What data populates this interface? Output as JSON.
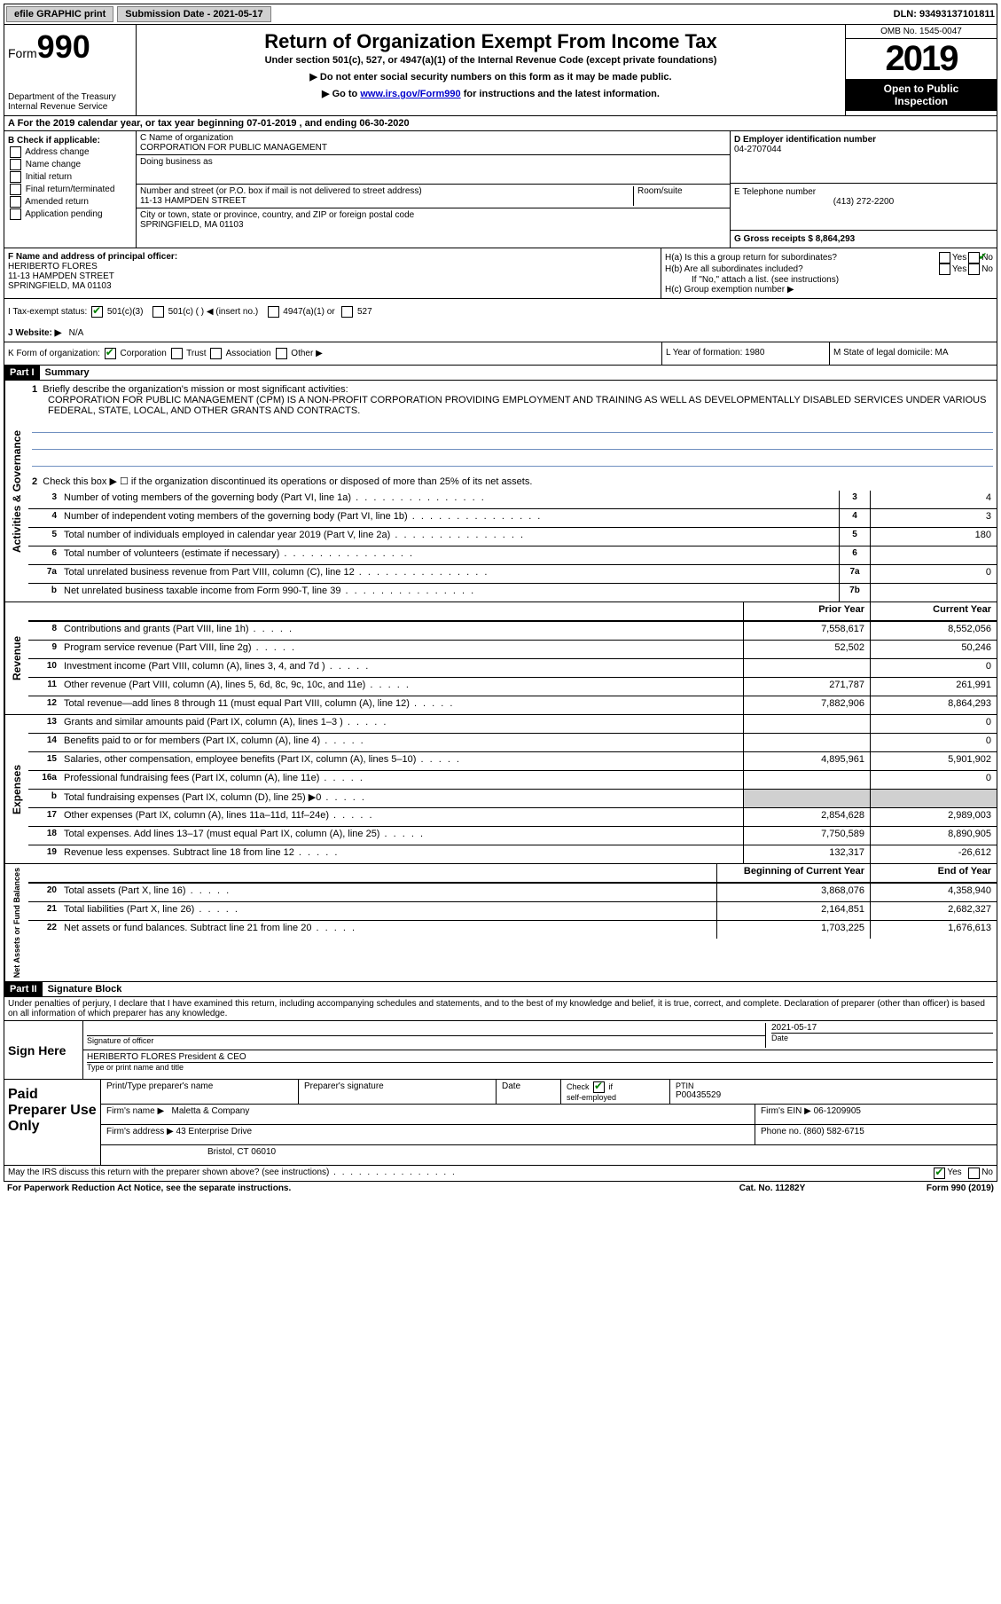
{
  "topbar": {
    "efile": "efile GRAPHIC print",
    "submission_label": "Submission Date - 2021-05-17",
    "dln": "DLN: 93493137101811"
  },
  "header": {
    "form_word": "Form",
    "form_num": "990",
    "dept": "Department of the Treasury",
    "irs": "Internal Revenue Service",
    "title": "Return of Organization Exempt From Income Tax",
    "sub1": "Under section 501(c), 527, or 4947(a)(1) of the Internal Revenue Code (except private foundations)",
    "sub2": "▶ Do not enter social security numbers on this form as it may be made public.",
    "sub3a": "▶ Go to ",
    "sub3_link": "www.irs.gov/Form990",
    "sub3b": " for instructions and the latest information.",
    "omb": "OMB No. 1545-0047",
    "year": "2019",
    "inspect1": "Open to Public",
    "inspect2": "Inspection"
  },
  "rowA": "A For the 2019 calendar year, or tax year beginning 07-01-2019   , and ending 06-30-2020",
  "colB": {
    "hdr": "B Check if applicable:",
    "items": [
      "Address change",
      "Name change",
      "Initial return",
      "Final return/terminated",
      "Amended return",
      "Application pending"
    ]
  },
  "colC": {
    "name_lbl": "C Name of organization",
    "name": "CORPORATION FOR PUBLIC MANAGEMENT",
    "dba_lbl": "Doing business as",
    "addr_lbl": "Number and street (or P.O. box if mail is not delivered to street address)",
    "room_lbl": "Room/suite",
    "addr": "11-13 HAMPDEN STREET",
    "city_lbl": "City or town, state or province, country, and ZIP or foreign postal code",
    "city": "SPRINGFIELD, MA  01103"
  },
  "colD": {
    "ein_lbl": "D Employer identification number",
    "ein": "04-2707044",
    "tel_lbl": "E Telephone number",
    "tel": "(413) 272-2200",
    "gross_lbl": "G Gross receipts $ 8,864,293"
  },
  "rowF": {
    "lbl": "F  Name and address of principal officer:",
    "name": "HERIBERTO FLORES",
    "addr1": "11-13 HAMPDEN STREET",
    "addr2": "SPRINGFIELD, MA  01103"
  },
  "rowH": {
    "ha": "H(a)  Is this a group return for subordinates?",
    "hb": "H(b)  Are all subordinates included?",
    "hb_note": "If \"No,\" attach a list. (see instructions)",
    "hc": "H(c)  Group exemption number ▶",
    "yes": "Yes",
    "no": "No"
  },
  "rowI": {
    "lbl": "I   Tax-exempt status:",
    "o1": "501(c)(3)",
    "o2": "501(c) (  ) ◀ (insert no.)",
    "o3": "4947(a)(1) or",
    "o4": "527"
  },
  "rowJ": {
    "lbl": "J   Website: ▶",
    "val": "N/A"
  },
  "rowK": {
    "lbl": "K Form of organization:",
    "o1": "Corporation",
    "o2": "Trust",
    "o3": "Association",
    "o4": "Other ▶"
  },
  "rowL": "L Year of formation: 1980",
  "rowM": "M State of legal domicile: MA",
  "part1": {
    "hdr": "Part I",
    "title": "Summary",
    "l1_lbl": "Briefly describe the organization's mission or most significant activities:",
    "l1_text": "CORPORATION FOR PUBLIC MANAGEMENT (CPM) IS A NON-PROFIT CORPORATION PROVIDING EMPLOYMENT AND TRAINING AS WELL AS DEVELOPMENTALLY DISABLED SERVICES UNDER VARIOUS FEDERAL, STATE, LOCAL, AND OTHER GRANTS AND CONTRACTS.",
    "l2": "Check this box ▶ ☐  if the organization discontinued its operations or disposed of more than 25% of its net assets.",
    "lines_ag": [
      {
        "n": "3",
        "d": "Number of voting members of the governing body (Part VI, line 1a)",
        "b": "3",
        "v": "4"
      },
      {
        "n": "4",
        "d": "Number of independent voting members of the governing body (Part VI, line 1b)",
        "b": "4",
        "v": "3"
      },
      {
        "n": "5",
        "d": "Total number of individuals employed in calendar year 2019 (Part V, line 2a)",
        "b": "5",
        "v": "180"
      },
      {
        "n": "6",
        "d": "Total number of volunteers (estimate if necessary)",
        "b": "6",
        "v": ""
      },
      {
        "n": "7a",
        "d": "Total unrelated business revenue from Part VIII, column (C), line 12",
        "b": "7a",
        "v": "0"
      },
      {
        "n": "b",
        "d": "Net unrelated business taxable income from Form 990-T, line 39",
        "b": "7b",
        "v": ""
      }
    ],
    "prior_hdr": "Prior Year",
    "curr_hdr": "Current Year",
    "rev": [
      {
        "n": "8",
        "d": "Contributions and grants (Part VIII, line 1h)",
        "p": "7,558,617",
        "c": "8,552,056"
      },
      {
        "n": "9",
        "d": "Program service revenue (Part VIII, line 2g)",
        "p": "52,502",
        "c": "50,246"
      },
      {
        "n": "10",
        "d": "Investment income (Part VIII, column (A), lines 3, 4, and 7d )",
        "p": "",
        "c": "0"
      },
      {
        "n": "11",
        "d": "Other revenue (Part VIII, column (A), lines 5, 6d, 8c, 9c, 10c, and 11e)",
        "p": "271,787",
        "c": "261,991"
      },
      {
        "n": "12",
        "d": "Total revenue—add lines 8 through 11 (must equal Part VIII, column (A), line 12)",
        "p": "7,882,906",
        "c": "8,864,293"
      }
    ],
    "exp": [
      {
        "n": "13",
        "d": "Grants and similar amounts paid (Part IX, column (A), lines 1–3 )",
        "p": "",
        "c": "0"
      },
      {
        "n": "14",
        "d": "Benefits paid to or for members (Part IX, column (A), line 4)",
        "p": "",
        "c": "0"
      },
      {
        "n": "15",
        "d": "Salaries, other compensation, employee benefits (Part IX, column (A), lines 5–10)",
        "p": "4,895,961",
        "c": "5,901,902"
      },
      {
        "n": "16a",
        "d": "Professional fundraising fees (Part IX, column (A), line 11e)",
        "p": "",
        "c": "0"
      },
      {
        "n": "b",
        "d": "Total fundraising expenses (Part IX, column (D), line 25) ▶0",
        "p": "",
        "c": "",
        "shade": true
      },
      {
        "n": "17",
        "d": "Other expenses (Part IX, column (A), lines 11a–11d, 11f–24e)",
        "p": "2,854,628",
        "c": "2,989,003"
      },
      {
        "n": "18",
        "d": "Total expenses. Add lines 13–17 (must equal Part IX, column (A), line 25)",
        "p": "7,750,589",
        "c": "8,890,905"
      },
      {
        "n": "19",
        "d": "Revenue less expenses. Subtract line 18 from line 12",
        "p": "132,317",
        "c": "-26,612"
      }
    ],
    "bcy_hdr": "Beginning of Current Year",
    "eoy_hdr": "End of Year",
    "net": [
      {
        "n": "20",
        "d": "Total assets (Part X, line 16)",
        "p": "3,868,076",
        "c": "4,358,940"
      },
      {
        "n": "21",
        "d": "Total liabilities (Part X, line 26)",
        "p": "2,164,851",
        "c": "2,682,327"
      },
      {
        "n": "22",
        "d": "Net assets or fund balances. Subtract line 21 from line 20",
        "p": "1,703,225",
        "c": "1,676,613"
      }
    ],
    "vlabels": {
      "ag": "Activities & Governance",
      "rev": "Revenue",
      "exp": "Expenses",
      "net": "Net Assets or Fund Balances"
    }
  },
  "part2": {
    "hdr": "Part II",
    "title": "Signature Block",
    "decl": "Under penalties of perjury, I declare that I have examined this return, including accompanying schedules and statements, and to the best of my knowledge and belief, it is true, correct, and complete. Declaration of preparer (other than officer) is based on all information of which preparer has any knowledge.",
    "sign_here": "Sign Here",
    "sig_officer": "Signature of officer",
    "sig_date": "2021-05-17",
    "date_lbl": "Date",
    "officer_name": "HERIBERTO FLORES  President & CEO",
    "type_name": "Type or print name and title",
    "paid": "Paid Preparer Use Only",
    "prep_name_lbl": "Print/Type preparer's name",
    "prep_sig_lbl": "Preparer's signature",
    "prep_date_lbl": "Date",
    "check_if": "Check ☑ if self-employed",
    "ptin_lbl": "PTIN",
    "ptin": "P00435529",
    "firm_name_lbl": "Firm's name   ▶",
    "firm_name": "Maletta & Company",
    "firm_ein_lbl": "Firm's EIN ▶",
    "firm_ein": "06-1209905",
    "firm_addr_lbl": "Firm's address ▶",
    "firm_addr1": "43 Enterprise Drive",
    "firm_addr2": "Bristol, CT  06010",
    "phone_lbl": "Phone no.",
    "phone": "(860) 582-6715",
    "discuss": "May the IRS discuss this return with the preparer shown above? (see instructions)",
    "yes": "Yes",
    "no": "No"
  },
  "footer": {
    "pra": "For Paperwork Reduction Act Notice, see the separate instructions.",
    "cat": "Cat. No. 11282Y",
    "form": "Form 990 (2019)"
  }
}
